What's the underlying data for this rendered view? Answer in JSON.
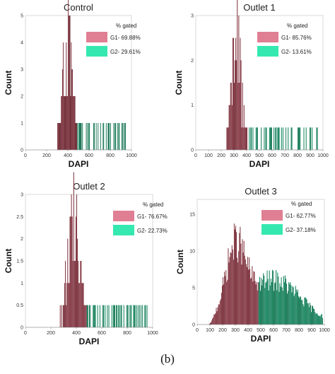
{
  "chart_data": [
    {
      "type": "area",
      "title": "Control",
      "xlabel": "DAPI",
      "ylabel": "Count",
      "xlim": [
        0,
        1000
      ],
      "ylim": [
        0,
        5
      ],
      "xticks": [
        "0",
        "200",
        "400",
        "600",
        "800",
        "1000"
      ],
      "yticks": [
        "0",
        "1",
        "2",
        "3",
        "4",
        "5"
      ],
      "legend_title": "% gated",
      "legend_position": "top-right",
      "gate_boundary": 490,
      "peak": 400,
      "series": [
        {
          "name": "G1- 69.88%",
          "color": "#e07f93",
          "range": [
            0,
            490
          ],
          "percent": 69.88
        },
        {
          "name": "G2- 29.61%",
          "color": "#35e8b0",
          "range": [
            490,
            1000
          ],
          "percent": 29.61
        }
      ]
    },
    {
      "type": "area",
      "title": "Outlet 1",
      "xlabel": "DAPI",
      "ylabel": "Count",
      "xlim": [
        0,
        1000
      ],
      "ylim": [
        0,
        3
      ],
      "xticks": [
        "0",
        "100",
        "200",
        "300",
        "400",
        "500",
        "600",
        "700",
        "800",
        "900",
        "1000"
      ],
      "yticks": [
        "0",
        "1",
        "2",
        "3"
      ],
      "legend_title": "% gated",
      "legend_position": "top-right",
      "gate_boundary": 420,
      "peak": 320,
      "series": [
        {
          "name": "G1- 85.76%",
          "color": "#e07f93",
          "range": [
            0,
            420
          ],
          "percent": 85.76
        },
        {
          "name": "G2- 13.61%",
          "color": "#35e8b0",
          "range": [
            420,
            1000
          ],
          "percent": 13.61
        }
      ]
    },
    {
      "type": "area",
      "title": "Outlet 2",
      "xlabel": "DAPI",
      "ylabel": "Count",
      "xlim": [
        0,
        1000
      ],
      "ylim": [
        0,
        3
      ],
      "xticks": [
        "0",
        "200",
        "400",
        "600",
        "800",
        "1000"
      ],
      "yticks": [
        "0",
        "0.5",
        "1",
        "1.5",
        "2",
        "2.5",
        "3"
      ],
      "legend_title": "% gated",
      "legend_position": "top-right",
      "gate_boundary": 480,
      "peak": 380,
      "series": [
        {
          "name": "G1- 76.67%",
          "color": "#e07f93",
          "range": [
            0,
            480
          ],
          "percent": 76.67
        },
        {
          "name": "G2- 22.73%",
          "color": "#35e8b0",
          "range": [
            480,
            1000
          ],
          "percent": 22.73
        }
      ]
    },
    {
      "type": "area",
      "title": "Outlet 3",
      "xlabel": "DAPI",
      "ylabel": "Count",
      "xlim": [
        0,
        1000
      ],
      "ylim": [
        0,
        17
      ],
      "xticks": [
        "0",
        "100",
        "200",
        "300",
        "400",
        "500",
        "600",
        "700",
        "800",
        "900",
        "1000"
      ],
      "yticks": [
        "0",
        "5",
        "10",
        "15"
      ],
      "legend_title": "% gated",
      "legend_position": "top-right",
      "gate_boundary": 480,
      "peak": 300,
      "series": [
        {
          "name": "G1- 62.77%",
          "color": "#e07f93",
          "range": [
            0,
            480
          ],
          "percent": 62.77
        },
        {
          "name": "G2- 37.18%",
          "color": "#35e8b0",
          "range": [
            480,
            1000
          ],
          "percent": 37.18
        }
      ]
    }
  ],
  "caption": "(b)"
}
